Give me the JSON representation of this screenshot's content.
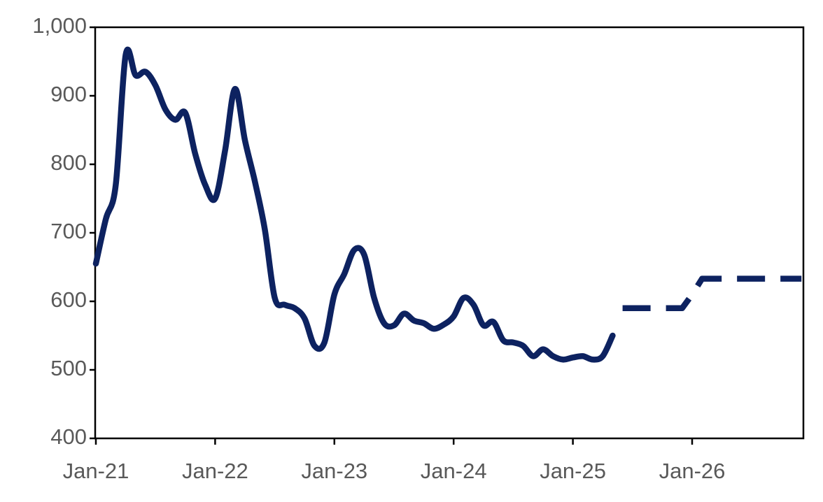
{
  "chart_data": {
    "type": "line",
    "title": "",
    "xlabel": "",
    "ylabel": "",
    "x_ticks": [
      "Jan-21",
      "Jan-22",
      "Jan-23",
      "Jan-24",
      "Jan-25",
      "Jan-26"
    ],
    "y_ticks": [
      "400",
      "500",
      "600",
      "700",
      "800",
      "900",
      "1,000"
    ],
    "ylim": [
      400,
      1000
    ],
    "xlim": [
      "2021-01",
      "2026-12"
    ],
    "grid": false,
    "legend": "none",
    "series": [
      {
        "style": "solid",
        "color": "#0d2260",
        "points": [
          [
            "2021-01",
            655
          ],
          [
            "2021-02",
            720
          ],
          [
            "2021-03",
            770
          ],
          [
            "2021-04",
            960
          ],
          [
            "2021-05",
            930
          ],
          [
            "2021-06",
            935
          ],
          [
            "2021-07",
            915
          ],
          [
            "2021-08",
            880
          ],
          [
            "2021-09",
            865
          ],
          [
            "2021-10",
            875
          ],
          [
            "2021-11",
            815
          ],
          [
            "2021-12",
            770
          ],
          [
            "2022-01",
            750
          ],
          [
            "2022-02",
            820
          ],
          [
            "2022-03",
            910
          ],
          [
            "2022-04",
            835
          ],
          [
            "2022-05",
            775
          ],
          [
            "2022-06",
            705
          ],
          [
            "2022-07",
            605
          ],
          [
            "2022-08",
            595
          ],
          [
            "2022-09",
            590
          ],
          [
            "2022-10",
            575
          ],
          [
            "2022-11",
            535
          ],
          [
            "2022-12",
            540
          ],
          [
            "2023-01",
            610
          ],
          [
            "2023-02",
            640
          ],
          [
            "2023-03",
            675
          ],
          [
            "2023-04",
            668
          ],
          [
            "2023-05",
            605
          ],
          [
            "2023-06",
            568
          ],
          [
            "2023-07",
            565
          ],
          [
            "2023-08",
            582
          ],
          [
            "2023-09",
            572
          ],
          [
            "2023-10",
            568
          ],
          [
            "2023-11",
            560
          ],
          [
            "2023-12",
            566
          ],
          [
            "2024-01",
            578
          ],
          [
            "2024-02",
            605
          ],
          [
            "2024-03",
            595
          ],
          [
            "2024-04",
            565
          ],
          [
            "2024-05",
            570
          ],
          [
            "2024-06",
            543
          ],
          [
            "2024-07",
            540
          ],
          [
            "2024-08",
            535
          ],
          [
            "2024-09",
            520
          ],
          [
            "2024-10",
            530
          ],
          [
            "2024-11",
            520
          ],
          [
            "2024-12",
            515
          ],
          [
            "2025-01",
            518
          ],
          [
            "2025-02",
            520
          ],
          [
            "2025-03",
            515
          ],
          [
            "2025-04",
            520
          ],
          [
            "2025-05",
            550
          ]
        ]
      },
      {
        "style": "dashed",
        "color": "#0d2260",
        "points": [
          [
            "2025-06",
            590
          ],
          [
            "2025-12",
            590
          ],
          [
            "2026-01",
            610
          ],
          [
            "2026-02",
            633
          ],
          [
            "2026-12",
            633
          ]
        ]
      }
    ]
  }
}
